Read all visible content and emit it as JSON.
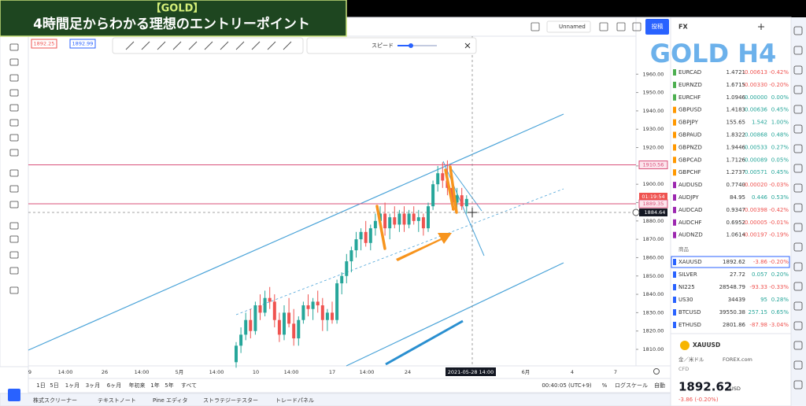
{
  "overlay": {
    "tag": "【GOLD】",
    "title": "4時間足からわかる理想のエントリーポイント",
    "watermark": "GOLD H4"
  },
  "header": {
    "layout": "Unnamed",
    "publish": "投稿",
    "watchlist": "FX"
  },
  "legend": {
    "bid": "1892.25",
    "ask": "1892.99"
  },
  "replay": {
    "speed": "スピード"
  },
  "chart": {
    "type": "candlestick",
    "ylim": [
      1801,
      1991
    ],
    "yticks": [
      {
        "value": 1810,
        "label": "1810.00"
      },
      {
        "value": 1820,
        "label": "1820.00"
      },
      {
        "value": 1830,
        "label": "1830.00"
      },
      {
        "value": 1840,
        "label": "1840.00"
      },
      {
        "value": 1850,
        "label": "1850.00"
      },
      {
        "value": 1860,
        "label": "1860.00"
      },
      {
        "value": 1870,
        "label": "1870.00"
      },
      {
        "value": 1880,
        "label": "1880.00"
      },
      {
        "value": 1890,
        "label": "1890.00"
      },
      {
        "value": 1900,
        "label": "1900.00"
      },
      {
        "value": 1910,
        "label": "1910.00"
      },
      {
        "value": 1920,
        "label": "1920.00"
      },
      {
        "value": 1930,
        "label": "1930.00"
      },
      {
        "value": 1940,
        "label": "1940.00"
      },
      {
        "value": 1950,
        "label": "1950.00"
      },
      {
        "value": 1960,
        "label": "1960.00"
      }
    ],
    "price_lines": [
      1910.56,
      1889.35
    ],
    "current_price": 1884.64,
    "countdown": "01:19:54",
    "up_color": "#26a69a",
    "down_color": "#ef5350",
    "time_labels": [
      "9",
      "14:00",
      "26",
      "14:00",
      "5月",
      "14:00",
      "10",
      "14:00",
      "17",
      "14:00",
      "24",
      "2021-05-28  14:00",
      "6月",
      "4",
      "7"
    ],
    "candles": [
      [
        1803,
        1814,
        1800,
        1812
      ],
      [
        1812,
        1822,
        1808,
        1818
      ],
      [
        1818,
        1830,
        1815,
        1826
      ],
      [
        1826,
        1832,
        1816,
        1820
      ],
      [
        1820,
        1836,
        1818,
        1834
      ],
      [
        1834,
        1840,
        1826,
        1830
      ],
      [
        1830,
        1842,
        1828,
        1838
      ],
      [
        1838,
        1844,
        1832,
        1836
      ],
      [
        1836,
        1840,
        1822,
        1826
      ],
      [
        1826,
        1830,
        1814,
        1818
      ],
      [
        1818,
        1834,
        1815,
        1830
      ],
      [
        1830,
        1838,
        1822,
        1824
      ],
      [
        1824,
        1832,
        1812,
        1816
      ],
      [
        1816,
        1828,
        1812,
        1826
      ],
      [
        1826,
        1836,
        1824,
        1834
      ],
      [
        1834,
        1840,
        1828,
        1832
      ],
      [
        1832,
        1838,
        1826,
        1836
      ],
      [
        1836,
        1842,
        1830,
        1834
      ],
      [
        1834,
        1838,
        1820,
        1826
      ],
      [
        1826,
        1832,
        1820,
        1830
      ],
      [
        1830,
        1836,
        1824,
        1826
      ],
      [
        1826,
        1848,
        1824,
        1846
      ],
      [
        1846,
        1852,
        1840,
        1850
      ],
      [
        1850,
        1862,
        1846,
        1858
      ],
      [
        1858,
        1866,
        1852,
        1864
      ],
      [
        1864,
        1874,
        1860,
        1870
      ],
      [
        1870,
        1876,
        1864,
        1874
      ],
      [
        1874,
        1880,
        1866,
        1868
      ],
      [
        1868,
        1878,
        1864,
        1876
      ],
      [
        1876,
        1884,
        1872,
        1880
      ],
      [
        1880,
        1888,
        1876,
        1884
      ],
      [
        1884,
        1890,
        1872,
        1876
      ],
      [
        1876,
        1884,
        1870,
        1882
      ],
      [
        1882,
        1888,
        1876,
        1878
      ],
      [
        1878,
        1886,
        1874,
        1884
      ],
      [
        1884,
        1888,
        1874,
        1878
      ],
      [
        1878,
        1886,
        1876,
        1884
      ],
      [
        1884,
        1888,
        1878,
        1880
      ],
      [
        1880,
        1886,
        1874,
        1882
      ],
      [
        1882,
        1884,
        1872,
        1876
      ],
      [
        1876,
        1890,
        1874,
        1888
      ],
      [
        1888,
        1902,
        1886,
        1900
      ],
      [
        1900,
        1910,
        1896,
        1906
      ],
      [
        1906,
        1912,
        1898,
        1902
      ],
      [
        1902,
        1913,
        1894,
        1898
      ],
      [
        1898,
        1904,
        1886,
        1890
      ],
      [
        1890,
        1898,
        1884,
        1894
      ],
      [
        1894,
        1898,
        1886,
        1888
      ],
      [
        1888,
        1894,
        1884,
        1892
      ]
    ]
  },
  "bottom_bar": {
    "ranges": [
      "1日",
      "5日",
      "1ヶ月",
      "3ヶ月",
      "6ヶ月",
      "年初来",
      "1年",
      "5年",
      "すべて"
    ],
    "clock": "00:40:05 (UTC+9)",
    "percent": "%",
    "log": "ログスケール",
    "auto": "自動"
  },
  "tabs": [
    "株式スクリーナー",
    "テキストノート",
    "Pine エディタ",
    "ストラテジーテスター",
    "トレードパネル"
  ],
  "watchlist": {
    "fx": [
      {
        "symbol": "EURCAD",
        "last": "1.4721",
        "chg": "-0.00613",
        "pct": "-0.42%",
        "color": "#4caf50"
      },
      {
        "symbol": "EURNZD",
        "last": "1.6715",
        "chg": "-0.00330",
        "pct": "-0.20%",
        "color": "#4caf50"
      },
      {
        "symbol": "EURCHF",
        "last": "1.0946",
        "chg": "0.00000",
        "pct": "0.00%",
        "color": "#4caf50"
      },
      {
        "symbol": "GBPUSD",
        "last": "1.4183",
        "chg": "0.00636",
        "pct": "0.45%",
        "color": "#ff9800"
      },
      {
        "symbol": "GBPJPY",
        "last": "155.65",
        "chg": "1.542",
        "pct": "1.00%",
        "color": "#ff9800"
      },
      {
        "symbol": "GBPAUD",
        "last": "1.8322",
        "chg": "0.00868",
        "pct": "0.48%",
        "color": "#ff9800"
      },
      {
        "symbol": "GBPNZD",
        "last": "1.9446",
        "chg": "0.00533",
        "pct": "0.27%",
        "color": "#ff9800"
      },
      {
        "symbol": "GBPCAD",
        "last": "1.7126",
        "chg": "0.00089",
        "pct": "0.05%",
        "color": "#ff9800"
      },
      {
        "symbol": "GBPCHF",
        "last": "1.2737",
        "chg": "0.00571",
        "pct": "0.45%",
        "color": "#ff9800"
      },
      {
        "symbol": "AUDUSD",
        "last": "0.7740",
        "chg": "-0.00020",
        "pct": "-0.03%",
        "color": "#9c27b0"
      },
      {
        "symbol": "AUDJPY",
        "last": "84.95",
        "chg": "0.446",
        "pct": "0.53%",
        "color": "#9c27b0"
      },
      {
        "symbol": "AUDCAD",
        "last": "0.9347",
        "chg": "-0.00398",
        "pct": "-0.42%",
        "color": "#9c27b0"
      },
      {
        "symbol": "AUDCHF",
        "last": "0.6952",
        "chg": "-0.00005",
        "pct": "-0.01%",
        "color": "#9c27b0"
      },
      {
        "symbol": "AUDNZD",
        "last": "1.0614",
        "chg": "-0.00197",
        "pct": "-0.19%",
        "color": "#9c27b0"
      }
    ],
    "section": "商品",
    "commodities": [
      {
        "symbol": "XAUUSD",
        "last": "1892.62",
        "chg": "-3.86",
        "pct": "-0.20%",
        "color": "#2962ff"
      },
      {
        "symbol": "SILVER",
        "last": "27.72",
        "chg": "0.057",
        "pct": "0.20%",
        "color": "#2962ff"
      },
      {
        "symbol": "NI225",
        "last": "28548.79",
        "chg": "-93.33",
        "pct": "-0.33%",
        "color": "#2962ff"
      },
      {
        "symbol": "US30",
        "last": "34439",
        "chg": "95",
        "pct": "0.28%",
        "color": "#2962ff"
      },
      {
        "symbol": "BTCUSD",
        "last": "39550.38",
        "chg": "257.15",
        "pct": "0.65%",
        "color": "#2962ff"
      },
      {
        "symbol": "ETHUSD",
        "last": "2801.86",
        "chg": "-87.98",
        "pct": "-3.04%",
        "color": "#2962ff"
      }
    ]
  },
  "detail": {
    "symbol": "XAUUSD",
    "name": "金／米ドル",
    "exchange": "FOREX.com",
    "kind": "CFD",
    "price": "1892.62",
    "currency": "USD",
    "change": "-3.86 (-0.20%)"
  }
}
